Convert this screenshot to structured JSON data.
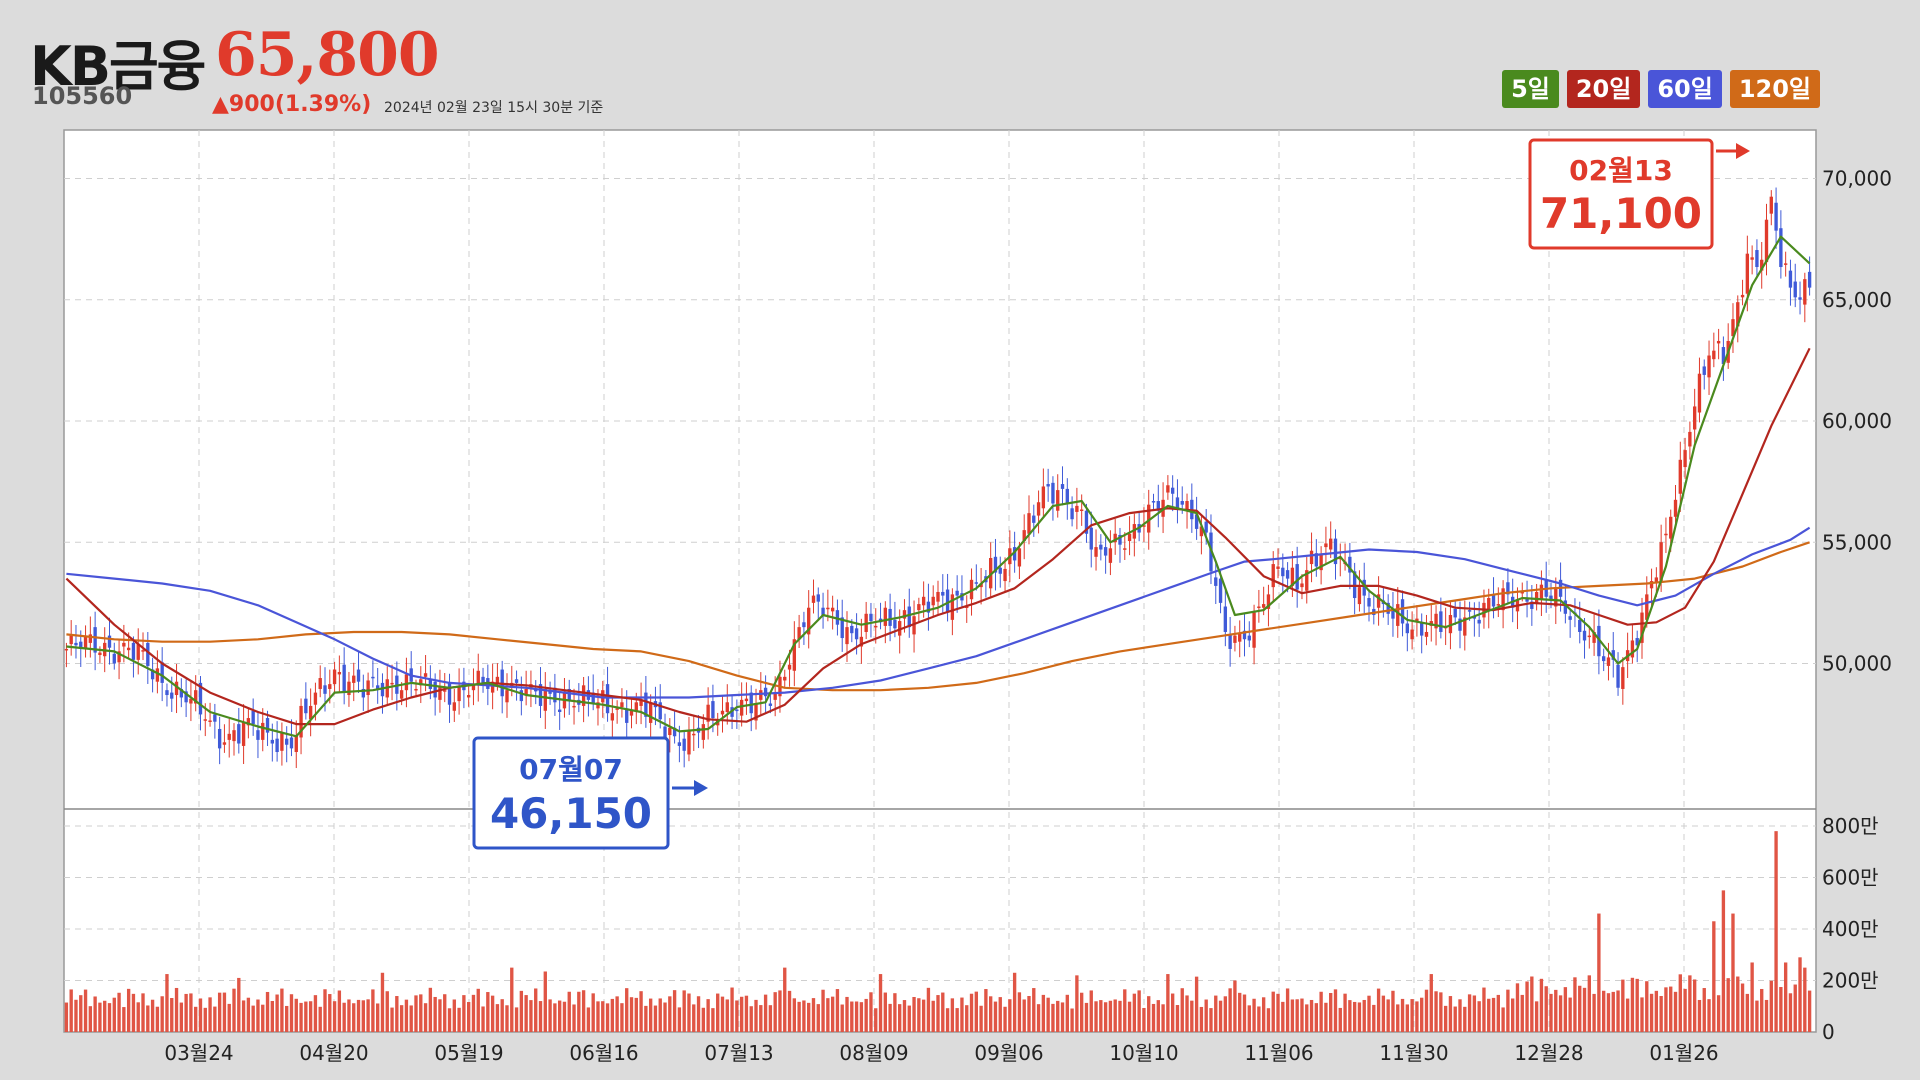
{
  "header": {
    "name": "KB금융",
    "price": "65,800",
    "code": "105560",
    "change": "▲900(1.39%)",
    "date": "2024년 02월 23일 15시 30분 기준"
  },
  "legend": [
    {
      "label": "5일",
      "color": "#4a8a1e"
    },
    {
      "label": "20일",
      "color": "#b3261e"
    },
    {
      "label": "60일",
      "color": "#4a55d8"
    },
    {
      "label": "120일",
      "color": "#d06a18"
    }
  ],
  "chart_data": {
    "type": "candlestick",
    "title": "",
    "price_ylim": [
      44000,
      72000
    ],
    "price_ticks": [
      "50,000",
      "55,000",
      "60,000",
      "65,000",
      "70,000"
    ],
    "volume_ylim": [
      0,
      8000000
    ],
    "volume_ticks": [
      "0",
      "200만",
      "400만",
      "600만",
      "800만"
    ],
    "x_ticks": [
      "03월24",
      "04월20",
      "05월19",
      "06월16",
      "07월13",
      "08월09",
      "09월06",
      "10월10",
      "11월06",
      "11월30",
      "12월28",
      "01월26"
    ],
    "grid": true,
    "colors": {
      "up": "#e03a2b",
      "down": "#3f5ad8",
      "ma5": "#4a8a1e",
      "ma20": "#b3261e",
      "ma60": "#4a55d8",
      "ma120": "#d06a18",
      "volume": "#e05545"
    },
    "annotations": {
      "low": {
        "date": "07월07",
        "value": "46,150"
      },
      "high": {
        "date": "02월13",
        "value": "71,100"
      }
    },
    "ohlc_path": [
      [
        0,
        50600
      ],
      [
        8,
        50800
      ],
      [
        15,
        50300
      ],
      [
        22,
        49000
      ],
      [
        28,
        48000
      ],
      [
        33,
        47000
      ],
      [
        38,
        47300
      ],
      [
        43,
        47000
      ],
      [
        47,
        46800
      ],
      [
        52,
        48600
      ],
      [
        56,
        49800
      ],
      [
        62,
        48800
      ],
      [
        68,
        49300
      ],
      [
        75,
        49000
      ],
      [
        82,
        48800
      ],
      [
        88,
        49100
      ],
      [
        92,
        49300
      ],
      [
        98,
        48500
      ],
      [
        104,
        48700
      ],
      [
        110,
        48300
      ],
      [
        114,
        48300
      ],
      [
        118,
        48200
      ],
      [
        122,
        48000
      ],
      [
        126,
        47200
      ],
      [
        130,
        46800
      ],
      [
        134,
        47600
      ],
      [
        140,
        48500
      ],
      [
        144,
        48200
      ],
      [
        148,
        48600
      ],
      [
        151,
        50500
      ],
      [
        155,
        52300
      ],
      [
        160,
        52000
      ],
      [
        164,
        51300
      ],
      [
        170,
        51600
      ],
      [
        176,
        52100
      ],
      [
        182,
        52500
      ],
      [
        188,
        53000
      ],
      [
        192,
        53400
      ],
      [
        196,
        54000
      ],
      [
        200,
        55600
      ],
      [
        204,
        56800
      ],
      [
        208,
        57000
      ],
      [
        212,
        56300
      ],
      [
        215,
        54200
      ],
      [
        218,
        54700
      ],
      [
        222,
        55500
      ],
      [
        225,
        56000
      ],
      [
        228,
        56400
      ],
      [
        231,
        57000
      ],
      [
        235,
        56400
      ],
      [
        238,
        55000
      ],
      [
        240,
        53000
      ],
      [
        242,
        51000
      ],
      [
        246,
        51300
      ],
      [
        250,
        52500
      ],
      [
        253,
        53800
      ],
      [
        257,
        53500
      ],
      [
        260,
        54300
      ],
      [
        264,
        54600
      ],
      [
        268,
        53800
      ],
      [
        272,
        52500
      ],
      [
        276,
        52000
      ],
      [
        280,
        51700
      ],
      [
        284,
        51600
      ],
      [
        288,
        51400
      ],
      [
        292,
        52000
      ],
      [
        296,
        52300
      ],
      [
        300,
        52500
      ],
      [
        304,
        52800
      ],
      [
        308,
        53000
      ],
      [
        312,
        52400
      ],
      [
        315,
        51700
      ],
      [
        318,
        51400
      ],
      [
        321,
        50200
      ],
      [
        324,
        49200
      ],
      [
        326,
        50300
      ],
      [
        328,
        51500
      ],
      [
        331,
        53500
      ],
      [
        334,
        55000
      ],
      [
        337,
        57800
      ],
      [
        340,
        61000
      ],
      [
        343,
        63000
      ],
      [
        346,
        62500
      ],
      [
        349,
        64500
      ],
      [
        351,
        67000
      ],
      [
        353,
        66500
      ],
      [
        356,
        69000
      ],
      [
        358,
        66500
      ],
      [
        360,
        65200
      ],
      [
        362,
        65300
      ],
      [
        364,
        65800
      ]
    ],
    "volume_series": [
      {
        "range": [
          0,
          300
        ],
        "typical": 1300000
      },
      {
        "range": [
          301,
          364
        ],
        "typical": 1700000
      }
    ],
    "volume_spikes": [
      [
        21,
        2250000
      ],
      [
        36,
        2100000
      ],
      [
        66,
        2300000
      ],
      [
        93,
        2500000
      ],
      [
        100,
        2350000
      ],
      [
        150,
        2500000
      ],
      [
        170,
        2250000
      ],
      [
        198,
        2300000
      ],
      [
        211,
        2200000
      ],
      [
        230,
        2250000
      ],
      [
        236,
        2150000
      ],
      [
        244,
        2000000
      ],
      [
        285,
        2250000
      ],
      [
        320,
        4600000
      ],
      [
        339,
        2200000
      ],
      [
        344,
        4300000
      ],
      [
        346,
        5500000
      ],
      [
        348,
        4600000
      ],
      [
        352,
        2700000
      ],
      [
        357,
        7800000
      ],
      [
        359,
        2700000
      ],
      [
        362,
        2900000
      ],
      [
        363,
        2500000
      ]
    ],
    "ma5": [
      [
        0,
        50700
      ],
      [
        10,
        50500
      ],
      [
        20,
        49500
      ],
      [
        30,
        48000
      ],
      [
        40,
        47400
      ],
      [
        48,
        47000
      ],
      [
        56,
        48800
      ],
      [
        64,
        48900
      ],
      [
        72,
        49200
      ],
      [
        80,
        49000
      ],
      [
        88,
        49200
      ],
      [
        96,
        48700
      ],
      [
        104,
        48500
      ],
      [
        112,
        48300
      ],
      [
        120,
        48000
      ],
      [
        128,
        47200
      ],
      [
        134,
        47300
      ],
      [
        140,
        48200
      ],
      [
        146,
        48400
      ],
      [
        152,
        50800
      ],
      [
        158,
        52000
      ],
      [
        166,
        51600
      ],
      [
        174,
        51900
      ],
      [
        182,
        52300
      ],
      [
        190,
        53100
      ],
      [
        198,
        54600
      ],
      [
        206,
        56500
      ],
      [
        212,
        56700
      ],
      [
        218,
        55000
      ],
      [
        224,
        55600
      ],
      [
        230,
        56500
      ],
      [
        236,
        56200
      ],
      [
        240,
        54200
      ],
      [
        244,
        52000
      ],
      [
        250,
        52200
      ],
      [
        258,
        53600
      ],
      [
        266,
        54400
      ],
      [
        272,
        53000
      ],
      [
        280,
        51800
      ],
      [
        288,
        51500
      ],
      [
        296,
        52100
      ],
      [
        304,
        52700
      ],
      [
        312,
        52600
      ],
      [
        318,
        51500
      ],
      [
        324,
        50000
      ],
      [
        328,
        50600
      ],
      [
        334,
        54000
      ],
      [
        340,
        59000
      ],
      [
        346,
        62300
      ],
      [
        352,
        65600
      ],
      [
        358,
        67600
      ],
      [
        364,
        66500
      ]
    ],
    "ma20": [
      [
        0,
        53500
      ],
      [
        10,
        51600
      ],
      [
        20,
        50000
      ],
      [
        30,
        48800
      ],
      [
        40,
        48000
      ],
      [
        48,
        47500
      ],
      [
        56,
        47500
      ],
      [
        64,
        48100
      ],
      [
        72,
        48600
      ],
      [
        80,
        49000
      ],
      [
        88,
        49200
      ],
      [
        96,
        49100
      ],
      [
        104,
        48900
      ],
      [
        112,
        48700
      ],
      [
        120,
        48500
      ],
      [
        128,
        48000
      ],
      [
        134,
        47700
      ],
      [
        142,
        47600
      ],
      [
        150,
        48300
      ],
      [
        158,
        49800
      ],
      [
        166,
        50800
      ],
      [
        174,
        51400
      ],
      [
        182,
        52000
      ],
      [
        190,
        52500
      ],
      [
        198,
        53100
      ],
      [
        206,
        54300
      ],
      [
        214,
        55700
      ],
      [
        222,
        56200
      ],
      [
        230,
        56400
      ],
      [
        236,
        56300
      ],
      [
        242,
        55200
      ],
      [
        250,
        53600
      ],
      [
        258,
        52900
      ],
      [
        266,
        53200
      ],
      [
        274,
        53200
      ],
      [
        282,
        52800
      ],
      [
        290,
        52300
      ],
      [
        298,
        52200
      ],
      [
        306,
        52500
      ],
      [
        314,
        52400
      ],
      [
        320,
        52000
      ],
      [
        326,
        51600
      ],
      [
        332,
        51700
      ],
      [
        338,
        52300
      ],
      [
        344,
        54200
      ],
      [
        350,
        57000
      ],
      [
        356,
        59800
      ],
      [
        364,
        63000
      ]
    ],
    "ma60": [
      [
        0,
        53700
      ],
      [
        10,
        53500
      ],
      [
        20,
        53300
      ],
      [
        30,
        53000
      ],
      [
        40,
        52400
      ],
      [
        48,
        51700
      ],
      [
        56,
        51000
      ],
      [
        64,
        50200
      ],
      [
        72,
        49500
      ],
      [
        80,
        49200
      ],
      [
        88,
        49100
      ],
      [
        96,
        49000
      ],
      [
        104,
        48800
      ],
      [
        112,
        48600
      ],
      [
        120,
        48600
      ],
      [
        130,
        48600
      ],
      [
        140,
        48700
      ],
      [
        150,
        48800
      ],
      [
        160,
        49000
      ],
      [
        170,
        49300
      ],
      [
        180,
        49800
      ],
      [
        190,
        50300
      ],
      [
        200,
        51000
      ],
      [
        210,
        51700
      ],
      [
        220,
        52400
      ],
      [
        230,
        53100
      ],
      [
        240,
        53800
      ],
      [
        246,
        54200
      ],
      [
        252,
        54300
      ],
      [
        262,
        54500
      ],
      [
        272,
        54700
      ],
      [
        282,
        54600
      ],
      [
        292,
        54300
      ],
      [
        302,
        53800
      ],
      [
        312,
        53300
      ],
      [
        320,
        52800
      ],
      [
        328,
        52400
      ],
      [
        336,
        52800
      ],
      [
        344,
        53700
      ],
      [
        352,
        54500
      ],
      [
        360,
        55100
      ],
      [
        364,
        55600
      ]
    ],
    "ma120": [
      [
        0,
        51200
      ],
      [
        10,
        51000
      ],
      [
        20,
        50900
      ],
      [
        30,
        50900
      ],
      [
        40,
        51000
      ],
      [
        50,
        51200
      ],
      [
        60,
        51300
      ],
      [
        70,
        51300
      ],
      [
        80,
        51200
      ],
      [
        90,
        51000
      ],
      [
        100,
        50800
      ],
      [
        110,
        50600
      ],
      [
        120,
        50500
      ],
      [
        130,
        50100
      ],
      [
        140,
        49500
      ],
      [
        150,
        49000
      ],
      [
        160,
        48900
      ],
      [
        170,
        48900
      ],
      [
        180,
        49000
      ],
      [
        190,
        49200
      ],
      [
        200,
        49600
      ],
      [
        210,
        50100
      ],
      [
        220,
        50500
      ],
      [
        230,
        50800
      ],
      [
        240,
        51100
      ],
      [
        250,
        51400
      ],
      [
        260,
        51700
      ],
      [
        270,
        52000
      ],
      [
        280,
        52300
      ],
      [
        290,
        52600
      ],
      [
        300,
        52900
      ],
      [
        310,
        53100
      ],
      [
        320,
        53200
      ],
      [
        330,
        53300
      ],
      [
        340,
        53500
      ],
      [
        350,
        54000
      ],
      [
        358,
        54600
      ],
      [
        364,
        55000
      ]
    ]
  }
}
